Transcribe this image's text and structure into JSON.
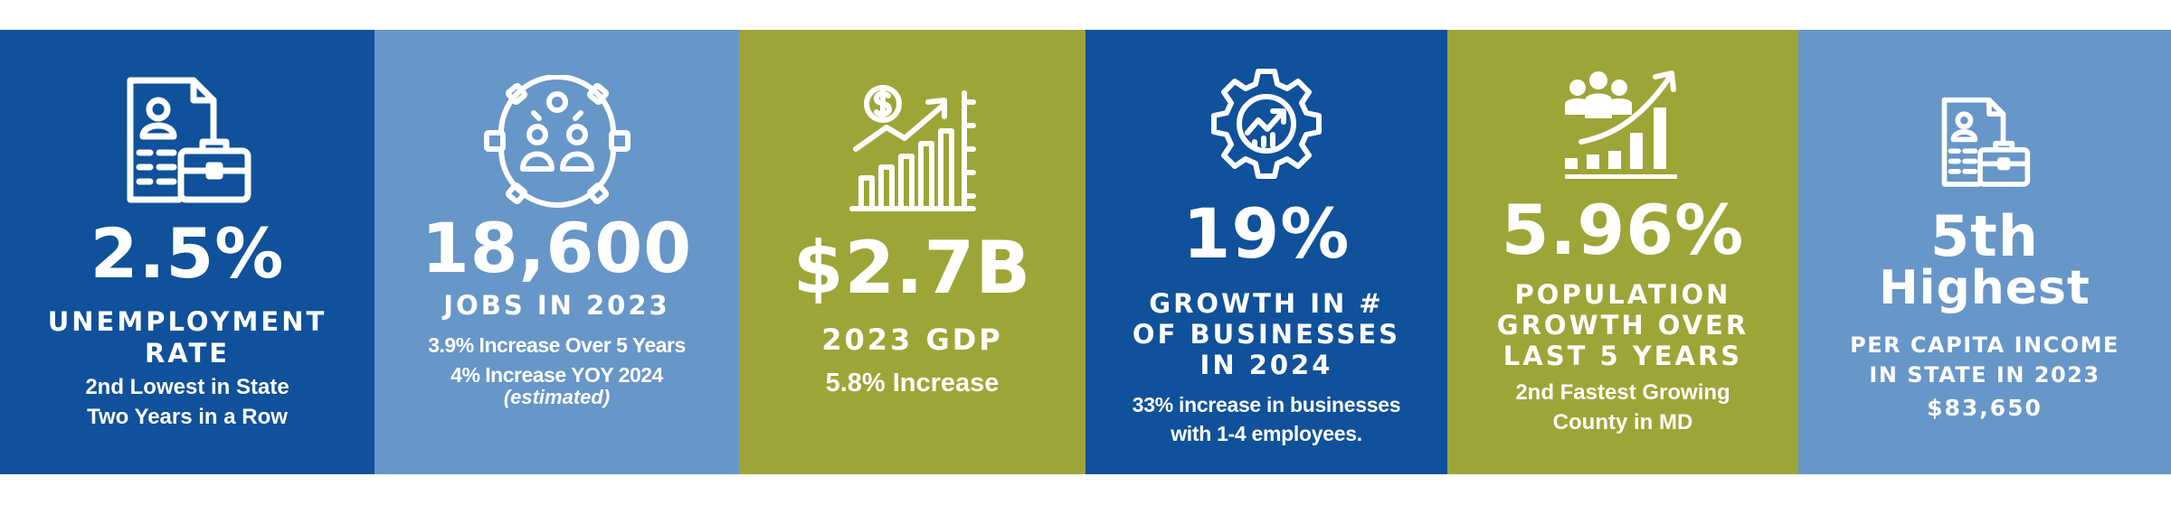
{
  "colors": {
    "dark_blue": "#0f519a",
    "light_blue": "#6796c8",
    "olive": "#9da537",
    "white": "#ffffff"
  },
  "stats": [
    {
      "icon": "resume-briefcase-icon",
      "value": "2.5%",
      "heading": [
        "UNEMPLOYMENT",
        "RATE"
      ],
      "details": [
        "2nd Lowest in State",
        "Two Years in a Row"
      ]
    },
    {
      "icon": "people-gear-icon",
      "value": "18,600",
      "heading": [
        "JOBS IN 2023"
      ],
      "details": [
        "3.9% Increase Over 5 Years",
        "4% Increase YOY 2024"
      ],
      "note": "(estimated)"
    },
    {
      "icon": "dollar-growth-chart-icon",
      "value": "$2.7B",
      "heading": [
        "2023 GDP"
      ],
      "details": [
        "5.8% Increase"
      ]
    },
    {
      "icon": "gear-growth-icon",
      "value": "19%",
      "heading": [
        "GROWTH IN #",
        "OF BUSINESSES",
        "IN 2024"
      ],
      "details": [
        "33% increase in businesses",
        "with 1-4 employees."
      ]
    },
    {
      "icon": "population-growth-icon",
      "value": "5.96%",
      "heading": [
        "POPULATION",
        "GROWTH OVER",
        "LAST 5 YEARS"
      ],
      "details": [
        "2nd Fastest Growing",
        "County in MD"
      ]
    },
    {
      "icon": "resume-briefcase-icon",
      "value": "5th",
      "value2": "Highest",
      "heading": [
        "PER CAPITA INCOME",
        "IN STATE IN 2023"
      ],
      "details": [
        "$83,650"
      ]
    }
  ]
}
